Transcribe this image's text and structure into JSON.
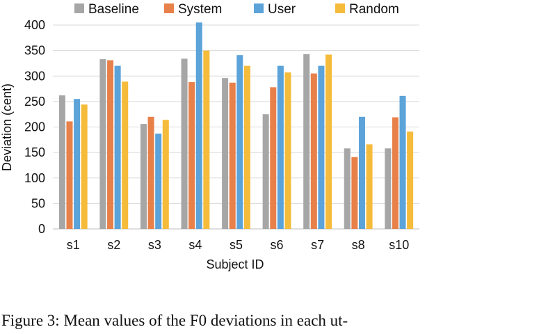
{
  "caption": "Figure 3: Mean values of the F0 deviations in each ut-",
  "colors": {
    "grid": "#d9d9d9",
    "axis": "#bfbfbf"
  },
  "chart_data": {
    "type": "bar",
    "xlabel": "Subject ID",
    "ylabel": "Deviation (cent)",
    "ylim": [
      0,
      400
    ],
    "yticks": [
      0,
      50,
      100,
      150,
      200,
      250,
      300,
      350,
      400
    ],
    "grid": true,
    "legend_position": "top",
    "categories": [
      "s1",
      "s2",
      "s3",
      "s4",
      "s5",
      "s6",
      "s7",
      "s8",
      "s10"
    ],
    "series": [
      {
        "name": "Baseline",
        "color": "#a6a6a6",
        "values": [
          262,
          333,
          206,
          334,
          296,
          225,
          343,
          158,
          158
        ]
      },
      {
        "name": "System",
        "color": "#e8804a",
        "values": [
          211,
          331,
          220,
          288,
          287,
          278,
          305,
          141,
          219
        ]
      },
      {
        "name": "User",
        "color": "#5ba3d9",
        "values": [
          255,
          320,
          187,
          405,
          341,
          320,
          320,
          220,
          261
        ]
      },
      {
        "name": "Random",
        "color": "#f5bb3a",
        "values": [
          244,
          289,
          214,
          350,
          320,
          307,
          342,
          166,
          191
        ]
      }
    ]
  }
}
